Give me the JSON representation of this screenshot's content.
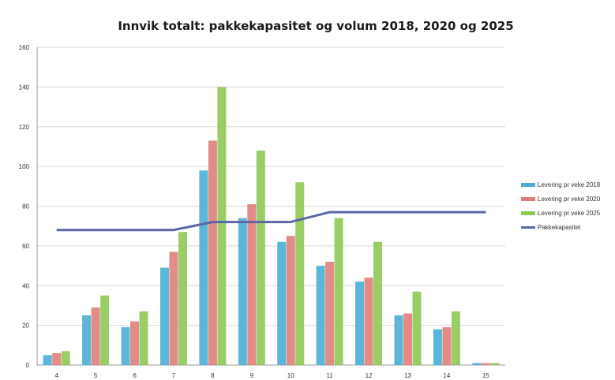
{
  "chart_data": {
    "type": "bar",
    "title": "Innvik totalt: pakkekapasitet og volum 2018, 2020 og 2025",
    "xlabel": "",
    "ylabel": "",
    "categories": [
      "4",
      "5",
      "6",
      "7",
      "8",
      "9",
      "10",
      "11",
      "12",
      "13",
      "14",
      "15"
    ],
    "ylim": [
      0,
      160
    ],
    "yticks": [
      "0",
      "20",
      "40",
      "60",
      "80",
      "100",
      "120",
      "140",
      "160"
    ],
    "grid": true,
    "legend_position": "right",
    "series": [
      {
        "name": "Levering pr veke 2018",
        "kind": "bar",
        "color": "#4aaed6",
        "values": [
          5,
          25,
          19,
          49,
          98,
          74,
          62,
          50,
          42,
          25,
          18,
          1
        ]
      },
      {
        "name": "Levering pr veke 2020",
        "kind": "bar",
        "color": "#e07f78",
        "values": [
          6,
          29,
          22,
          57,
          113,
          81,
          65,
          52,
          44,
          26,
          19,
          1
        ]
      },
      {
        "name": "Levering pr veke 2025",
        "kind": "bar",
        "color": "#8ec956",
        "values": [
          7,
          35,
          27,
          67,
          140,
          108,
          92,
          74,
          62,
          37,
          27,
          1
        ]
      },
      {
        "name": "Pakkekapasitet",
        "kind": "line",
        "color": "#5a66a6",
        "values": [
          68,
          68,
          68,
          68,
          72,
          72,
          72,
          77,
          77,
          77,
          77,
          77
        ]
      }
    ]
  }
}
